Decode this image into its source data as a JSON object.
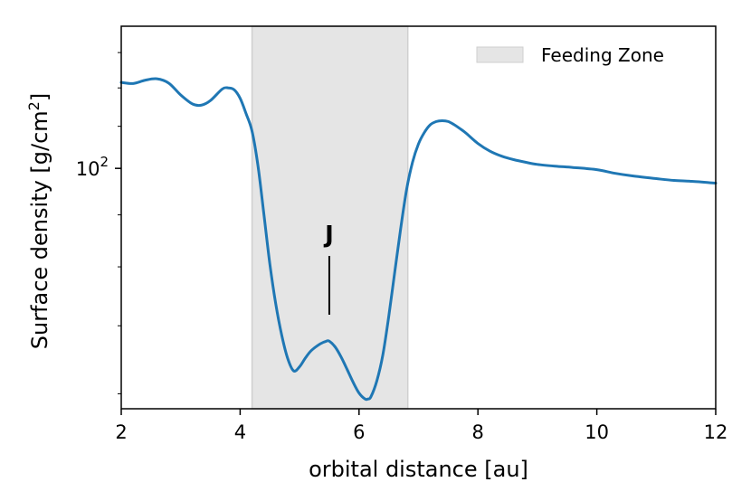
{
  "chart_data": {
    "type": "line",
    "title": "",
    "xlabel": "orbital distance [au]",
    "ylabel": "Surface density [g/cm",
    "ylabel_sup": "2",
    "ylabel_end": "]",
    "yscale": "log",
    "xlim": [
      2,
      12
    ],
    "ylim": [
      58,
      138
    ],
    "x_ticks": [
      {
        "value": 2,
        "label": "2"
      },
      {
        "value": 4,
        "label": "4"
      },
      {
        "value": 6,
        "label": "6"
      },
      {
        "value": 8,
        "label": "8"
      },
      {
        "value": 10,
        "label": "10"
      },
      {
        "value": 12,
        "label": "12"
      }
    ],
    "y_major_ticks": [
      {
        "value": 100,
        "base": "10",
        "exp": "2"
      }
    ],
    "y_minor_ticks": [
      60,
      70,
      80,
      90,
      100,
      110,
      120,
      130
    ],
    "grid": false,
    "legend": {
      "position": "top-right",
      "entries": [
        "Feeding Zone"
      ]
    },
    "feeding_zone": {
      "label": "Feeding Zone",
      "x_start": 4.2,
      "x_end": 6.82,
      "color": "#e5e5e5"
    },
    "annotation": {
      "text": "J",
      "x": 5.5
    },
    "series": [
      {
        "color": "#1f77b4",
        "x": [
          2.0,
          2.2,
          2.4,
          2.6,
          2.8,
          3.0,
          3.2,
          3.35,
          3.5,
          3.7,
          3.8,
          3.9,
          4.0,
          4.1,
          4.2,
          4.3,
          4.4,
          4.5,
          4.6,
          4.7,
          4.8,
          4.9,
          5.0,
          5.1,
          5.2,
          5.35,
          5.45,
          5.5,
          5.6,
          5.7,
          5.8,
          5.9,
          6.0,
          6.1,
          6.15,
          6.2,
          6.3,
          6.4,
          6.5,
          6.6,
          6.7,
          6.8,
          6.9,
          7.0,
          7.1,
          7.2,
          7.3,
          7.4,
          7.5,
          7.6,
          7.7,
          7.8,
          8.0,
          8.2,
          8.4,
          8.6,
          8.8,
          9.0,
          9.3,
          9.6,
          10.0,
          10.3,
          10.6,
          11.0,
          11.3,
          11.6,
          12.0
        ],
        "y": [
          121.5,
          121.2,
          122.1,
          122.5,
          121.3,
          118.1,
          115.7,
          115.4,
          116.6,
          119.7,
          120.0,
          119.5,
          117.2,
          113.2,
          108.8,
          100.6,
          90.1,
          80.5,
          73.5,
          68.5,
          65.0,
          63.2,
          63.8,
          65.1,
          66.2,
          67.2,
          67.6,
          67.6,
          66.7,
          65.2,
          63.4,
          61.6,
          60.1,
          59.3,
          59.3,
          59.6,
          61.8,
          65.5,
          71.5,
          79.0,
          87.2,
          95.3,
          101.4,
          105.7,
          108.5,
          110.4,
          111.2,
          111.4,
          111.2,
          110.4,
          109.4,
          108.3,
          105.8,
          104.0,
          102.8,
          102.0,
          101.4,
          100.9,
          100.5,
          100.2,
          99.7,
          98.9,
          98.3,
          97.7,
          97.3,
          97.1,
          96.7
        ]
      }
    ]
  }
}
